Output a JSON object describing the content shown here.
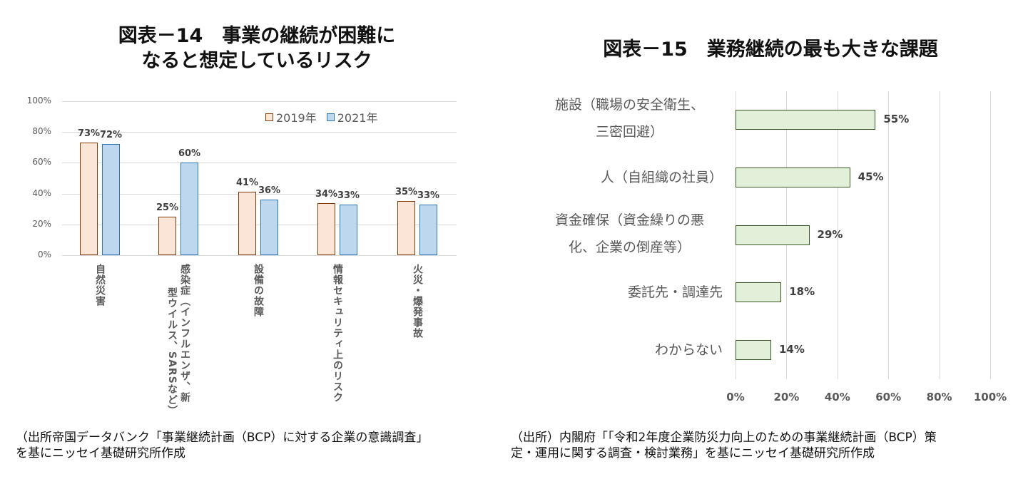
{
  "chart_data": [
    {
      "type": "bar",
      "title": "図表－14　事業の継続が困難になると想定しているリスク",
      "title_lines": [
        "図表－14　事業の継続が困難に",
        "なると想定しているリスク"
      ],
      "categories": [
        "自然災害",
        "感染症（インフルエンザ、新型ウイルス、SARSなど）",
        "設備の故障",
        "情報セキュリティ上のリスク",
        "火災・爆発事故"
      ],
      "category_label_lines": [
        [
          "自然災害"
        ],
        [
          "感染症（インフルエンザ、新",
          "型ウイルス、SARSなど）"
        ],
        [
          "設備の故障"
        ],
        [
          "情報セキュリティ上のリスク"
        ],
        [
          "火災・爆発事故"
        ]
      ],
      "series": [
        {
          "name": "2019年",
          "values": [
            73,
            25,
            41,
            34,
            35
          ],
          "labels": [
            "73%",
            "25%",
            "41%",
            "34%",
            "35%"
          ],
          "fill": "#fbe5d6",
          "border": "#843c0c"
        },
        {
          "name": "2021年",
          "values": [
            72,
            60,
            36,
            33,
            33
          ],
          "labels": [
            "72%",
            "60%",
            "36%",
            "33%",
            "33%"
          ],
          "fill": "#bdd7ee",
          "border": "#2e75b6"
        }
      ],
      "xlabel": "",
      "ylabel": "",
      "ylim": [
        0,
        100
      ],
      "yticks": [
        "100%",
        "80%",
        "60%",
        "40%",
        "20%",
        "0%"
      ],
      "grid": true,
      "legend_position": "top-right inside"
    },
    {
      "type": "bar",
      "orientation": "horizontal",
      "title": "図表－15　業務継続の最も大きな課題",
      "categories": [
        "施設（職場の安全衛生、三密回避）",
        "人（自組織の社員）",
        "資金確保（資金繰りの悪化、企業の倒産等）",
        "委託先・調達先",
        "わからない"
      ],
      "category_label_lines": [
        [
          "施設（職場の安全衛生、",
          "三密回避）"
        ],
        [
          "人（自組織の社員）"
        ],
        [
          "資金確保（資金繰りの悪",
          "化、企業の倒産等）"
        ],
        [
          "委託先・調達先"
        ],
        [
          "わからない"
        ]
      ],
      "values": [
        55,
        45,
        29,
        18,
        14
      ],
      "labels": [
        "55%",
        "45%",
        "29%",
        "18%",
        "14%"
      ],
      "fill": "#e2f0d9",
      "border": "#385723",
      "xlabel": "",
      "ylabel": "",
      "xlim": [
        0,
        100
      ],
      "xticks": [
        "0%",
        "20%",
        "40%",
        "60%",
        "80%",
        "100%"
      ],
      "grid": true
    }
  ],
  "left": {
    "title_line1": "図表－14　事業の継続が困難に",
    "title_line2": "なると想定しているリスク",
    "legend": {
      "s1": "2019年",
      "s2": "2021年"
    },
    "source_line1": "（出所帝国データバンク「事業継続計画（BCP）に対する企業の意識調査」",
    "source_line2": "を基にニッセイ基礎研究所作成"
  },
  "right": {
    "title": "図表－15　業務継続の最も大きな課題",
    "source_line1": "（出所）内閣府「「令和2年度企業防災力向上のための事業継続計画（BCP）策",
    "source_line2": "定・運用に関する調査・検討業務」を基にニッセイ基礎研究所作成"
  }
}
